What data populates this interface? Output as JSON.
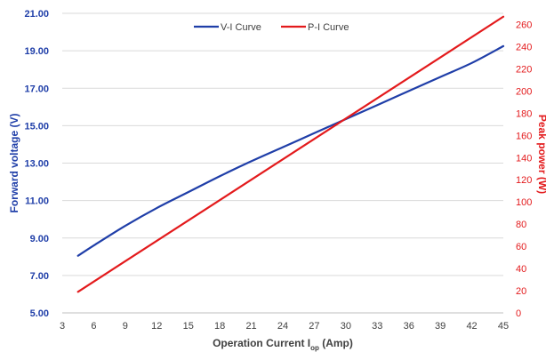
{
  "chart_data": {
    "type": "line",
    "x_axis": {
      "label": "Operation Current I",
      "label_sub": "op",
      "label_suffix": " (Amp)",
      "range": [
        3,
        45
      ],
      "ticks": [
        3,
        6,
        9,
        12,
        15,
        18,
        21,
        24,
        27,
        30,
        33,
        36,
        39,
        42,
        45
      ]
    },
    "y_left": {
      "label": "Forward voltage (V)",
      "range": [
        5,
        21
      ],
      "ticks": [
        "5.00",
        "7.00",
        "9.00",
        "11.00",
        "13.00",
        "15.00",
        "17.00",
        "19.00",
        "21.00"
      ],
      "color": "#1f3ea8"
    },
    "y_right": {
      "label": "Peak power (W)",
      "range": [
        0,
        270
      ],
      "ticks": [
        0,
        20,
        40,
        60,
        80,
        100,
        120,
        140,
        160,
        180,
        200,
        220,
        240,
        260
      ],
      "color": "#e31a1c"
    },
    "series": [
      {
        "name": "V-I Curve",
        "axis": "left",
        "color": "#1f3ea8",
        "x": [
          4.5,
          6,
          9,
          12,
          15,
          18,
          21,
          24,
          27,
          30,
          33,
          36,
          39,
          42,
          45
        ],
        "y": [
          8.05,
          8.6,
          9.65,
          10.6,
          11.45,
          12.3,
          13.1,
          13.85,
          14.6,
          15.35,
          16.1,
          16.85,
          17.6,
          18.35,
          19.25
        ]
      },
      {
        "name": "P-I Curve",
        "axis": "right",
        "color": "#e31a1c",
        "x": [
          4.5,
          45
        ],
        "y": [
          19,
          267
        ]
      }
    ],
    "legend": {
      "position": "top-center"
    },
    "grid": {
      "horizontal": true,
      "vertical": false,
      "color": "#d9d9d9"
    }
  }
}
